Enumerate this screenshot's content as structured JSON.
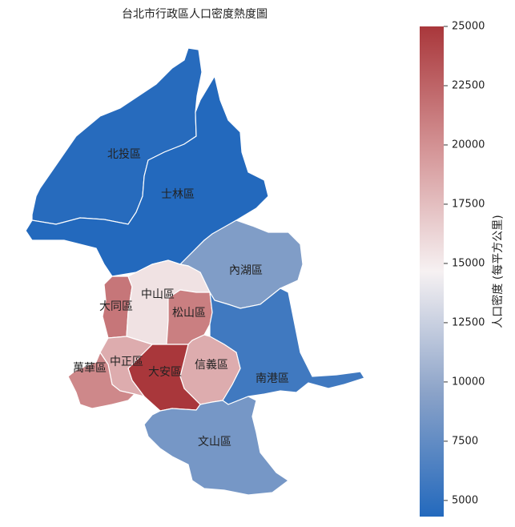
{
  "chart_data": {
    "type": "choropleth",
    "title": "台北市行政區人口密度熱度圖",
    "categories": [
      "北投區",
      "士林區",
      "內湖區",
      "大同區",
      "中山區",
      "松山區",
      "南港區",
      "信義區",
      "大安區",
      "中正區",
      "萬華區",
      "文山區"
    ],
    "values": [
      4500,
      4320,
      9000,
      21500,
      15500,
      21000,
      5800,
      18500,
      25000,
      18500,
      20500,
      8500
    ],
    "colorbar_label": "人口密度 (每平方公里)",
    "clim": [
      4320,
      25000
    ],
    "cticks": [
      5000,
      7500,
      10000,
      12500,
      15000,
      17500,
      20000,
      22500,
      25000
    ],
    "colormap": [
      "#2369bd",
      "#8aa2c8",
      "#f6f1f2",
      "#d49496",
      "#a9373b"
    ]
  }
}
